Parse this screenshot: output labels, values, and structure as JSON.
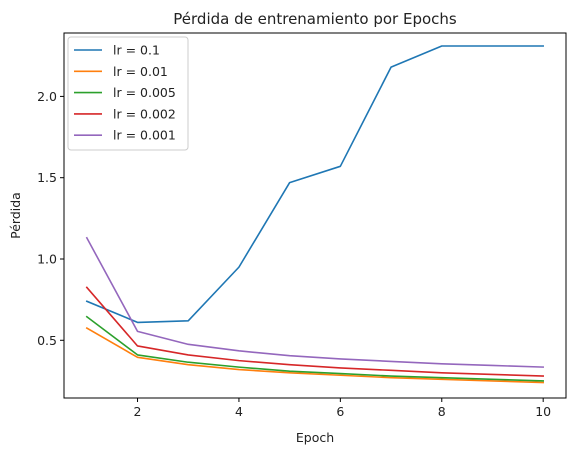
{
  "chart_data": {
    "type": "line",
    "title": "Pérdida de entrenamiento por Epochs",
    "xlabel": "Epoch",
    "ylabel": "Pérdida",
    "xlim": [
      0.55,
      10.45
    ],
    "ylim": [
      0.145,
      2.39
    ],
    "x_ticks": [
      2,
      4,
      6,
      8,
      10
    ],
    "y_ticks": [
      0.5,
      1.0,
      1.5,
      2.0
    ],
    "x_tick_labels": [
      "2",
      "4",
      "6",
      "8",
      "10"
    ],
    "y_tick_labels": [
      "0.5",
      "1.0",
      "1.5",
      "2.0"
    ],
    "grid": false,
    "legend_position": "top-left",
    "x": [
      1,
      2,
      3,
      4,
      5,
      6,
      7,
      8,
      9,
      10
    ],
    "series": [
      {
        "name": "lr = 0.1",
        "color": "#1f77b4",
        "values": [
          0.74,
          0.61,
          0.62,
          0.95,
          1.47,
          1.57,
          2.18,
          2.31,
          2.31,
          2.31
        ]
      },
      {
        "name": "lr = 0.01",
        "color": "#ff7f0e",
        "values": [
          0.575,
          0.395,
          0.35,
          0.32,
          0.3,
          0.285,
          0.27,
          0.26,
          0.25,
          0.24
        ]
      },
      {
        "name": "lr = 0.005",
        "color": "#2ca02c",
        "values": [
          0.645,
          0.41,
          0.365,
          0.335,
          0.31,
          0.295,
          0.28,
          0.27,
          0.26,
          0.25
        ]
      },
      {
        "name": "lr = 0.002",
        "color": "#d62728",
        "values": [
          0.825,
          0.465,
          0.41,
          0.375,
          0.35,
          0.33,
          0.315,
          0.3,
          0.29,
          0.28
        ]
      },
      {
        "name": "lr = 0.001",
        "color": "#9467bd",
        "values": [
          1.13,
          0.555,
          0.475,
          0.435,
          0.405,
          0.385,
          0.37,
          0.355,
          0.345,
          0.335
        ]
      }
    ]
  }
}
